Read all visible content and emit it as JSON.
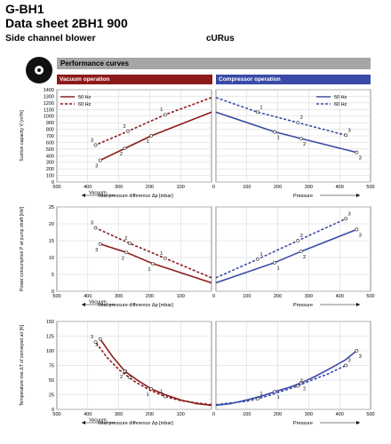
{
  "header": {
    "model": "G-BH1",
    "datasheet": "Data sheet 2BH1 900",
    "product": "Side channel blower",
    "cert_mark": "cURus"
  },
  "performance": {
    "title": "Performance curves",
    "vacuum_label": "Vacuum operation",
    "compressor_label": "Compressor operation"
  },
  "colors": {
    "vacuum": "#8c1a1a",
    "compressor": "#3a4aa6"
  },
  "chart_data": [
    {
      "type": "line",
      "panel": "suction-capacity",
      "ylabel": "Suction capacity V̇ [m³/h]",
      "xlabel": "Total pressure difference Δp [mbar]",
      "x_left_label": "Vacuum",
      "x_right_label": "Pressure",
      "ylim": [
        0,
        1400
      ],
      "yticks": [
        0,
        100,
        200,
        300,
        400,
        500,
        600,
        700,
        800,
        900,
        1000,
        1100,
        1200,
        1300,
        1400
      ],
      "xticks": [
        "500",
        "400",
        "300",
        "200",
        "100",
        "0",
        "100",
        "200",
        "300",
        "400",
        "500"
      ],
      "legend": [
        "50 Hz",
        "60 Hz"
      ],
      "series": [
        {
          "side": "vacuum",
          "name": "50 Hz",
          "style": "solid",
          "x": [
            0,
            195,
            280,
            360
          ],
          "y": [
            1060,
            700,
            510,
            330
          ],
          "markers": [
            {
              "x": 195,
              "y": 700,
              "label": "1"
            },
            {
              "x": 280,
              "y": 510,
              "label": "2"
            },
            {
              "x": 360,
              "y": 330,
              "label": "3"
            }
          ]
        },
        {
          "side": "vacuum",
          "name": "60 Hz",
          "style": "dashed",
          "x": [
            0,
            150,
            270,
            375
          ],
          "y": [
            1280,
            1020,
            770,
            560
          ],
          "markers": [
            {
              "x": 150,
              "y": 1020,
              "label": "1"
            },
            {
              "x": 270,
              "y": 770,
              "label": "2"
            },
            {
              "x": 375,
              "y": 560,
              "label": "3"
            }
          ]
        },
        {
          "side": "compressor",
          "name": "50 Hz",
          "style": "solid",
          "x": [
            0,
            190,
            275,
            455
          ],
          "y": [
            1060,
            760,
            660,
            450
          ],
          "markers": [
            {
              "x": 190,
              "y": 760,
              "label": "1"
            },
            {
              "x": 275,
              "y": 660,
              "label": "2"
            },
            {
              "x": 455,
              "y": 450,
              "label": "3"
            }
          ]
        },
        {
          "side": "compressor",
          "name": "60 Hz",
          "style": "dashed",
          "x": [
            0,
            135,
            265,
            420
          ],
          "y": [
            1280,
            1060,
            900,
            710
          ],
          "markers": [
            {
              "x": 135,
              "y": 1060,
              "label": "1"
            },
            {
              "x": 265,
              "y": 900,
              "label": "2"
            },
            {
              "x": 420,
              "y": 710,
              "label": "3"
            }
          ]
        }
      ]
    },
    {
      "type": "line",
      "panel": "power-consumption",
      "ylabel": "Power consumption P at pump shaft [kW]",
      "xlabel": "Total pressure difference Δp [mbar]",
      "x_left_label": "Vacuum",
      "x_right_label": "Pressure",
      "ylim": [
        0,
        25
      ],
      "yticks": [
        0,
        5,
        10,
        15,
        20,
        25
      ],
      "xticks": [
        "500",
        "400",
        "300",
        "200",
        "100",
        "0",
        "100",
        "200",
        "300",
        "400",
        "500"
      ],
      "series": [
        {
          "side": "vacuum",
          "name": "50 Hz",
          "style": "solid",
          "x": [
            0,
            190,
            275,
            360
          ],
          "y": [
            2.5,
            8.2,
            11.5,
            14.0
          ],
          "markers": [
            {
              "x": 190,
              "y": 8.2,
              "label": "1"
            },
            {
              "x": 275,
              "y": 11.5,
              "label": "2"
            },
            {
              "x": 360,
              "y": 14.0,
              "label": "3"
            }
          ]
        },
        {
          "side": "vacuum",
          "name": "60 Hz",
          "style": "dashed",
          "x": [
            0,
            150,
            265,
            375
          ],
          "y": [
            4.0,
            9.8,
            14.2,
            18.8
          ],
          "markers": [
            {
              "x": 150,
              "y": 9.8,
              "label": "1"
            },
            {
              "x": 265,
              "y": 14.2,
              "label": "2"
            },
            {
              "x": 375,
              "y": 18.8,
              "label": "3"
            }
          ]
        },
        {
          "side": "compressor",
          "name": "50 Hz",
          "style": "solid",
          "x": [
            0,
            190,
            275,
            455
          ],
          "y": [
            2.5,
            8.5,
            11.8,
            18.3
          ],
          "markers": [
            {
              "x": 190,
              "y": 8.5,
              "label": "1"
            },
            {
              "x": 275,
              "y": 11.8,
              "label": "2"
            },
            {
              "x": 455,
              "y": 18.3,
              "label": "3"
            }
          ]
        },
        {
          "side": "compressor",
          "name": "60 Hz",
          "style": "dashed",
          "x": [
            0,
            135,
            265,
            420
          ],
          "y": [
            4.0,
            9.5,
            15.0,
            21.5
          ],
          "markers": [
            {
              "x": 135,
              "y": 9.5,
              "label": "1"
            },
            {
              "x": 265,
              "y": 15.0,
              "label": "2"
            },
            {
              "x": 420,
              "y": 21.5,
              "label": "3"
            }
          ]
        }
      ]
    },
    {
      "type": "line",
      "panel": "temperature-rise",
      "ylabel": "Temperature rise ΔT of conveyed air [K]",
      "xlabel": "Total pressure difference Δp [mbar]",
      "x_left_label": "Vacuum",
      "x_right_label": "Pressure",
      "ylim": [
        0,
        150
      ],
      "yticks": [
        0,
        25,
        50,
        75,
        100,
        125,
        150
      ],
      "xticks": [
        "500",
        "400",
        "300",
        "200",
        "100",
        "0",
        "100",
        "200",
        "300",
        "400",
        "500"
      ],
      "series": [
        {
          "side": "vacuum",
          "name": "50 Hz",
          "style": "solid",
          "x": [
            0,
            50,
            100,
            150,
            195,
            240,
            280,
            320,
            360
          ],
          "y": [
            7,
            10,
            16,
            25,
            35,
            50,
            65,
            90,
            120
          ],
          "markers": [
            {
              "x": 195,
              "y": 35,
              "label": "1"
            },
            {
              "x": 280,
              "y": 65,
              "label": "2"
            },
            {
              "x": 360,
              "y": 120,
              "label": "3"
            }
          ]
        },
        {
          "side": "vacuum",
          "name": "60 Hz",
          "style": "dashed",
          "x": [
            0,
            50,
            100,
            150,
            200,
            250,
            300,
            340,
            375
          ],
          "y": [
            8,
            11,
            15,
            22,
            33,
            48,
            68,
            90,
            115
          ],
          "markers": [
            {
              "x": 150,
              "y": 22,
              "label": "1"
            },
            {
              "x": 265,
              "y": 55,
              "label": "2"
            },
            {
              "x": 375,
              "y": 115,
              "label": "3"
            }
          ]
        },
        {
          "side": "compressor",
          "name": "50 Hz",
          "style": "solid",
          "x": [
            0,
            50,
            100,
            150,
            190,
            240,
            275,
            320,
            370,
            420,
            455
          ],
          "y": [
            7,
            10,
            16,
            23,
            30,
            38,
            45,
            56,
            70,
            85,
            100
          ],
          "markers": [
            {
              "x": 190,
              "y": 30,
              "label": "1"
            },
            {
              "x": 275,
              "y": 45,
              "label": "2"
            },
            {
              "x": 455,
              "y": 100,
              "label": "3"
            }
          ]
        },
        {
          "side": "compressor",
          "name": "60 Hz",
          "style": "dashed",
          "x": [
            0,
            50,
            100,
            135,
            180,
            225,
            265,
            310,
            360,
            420
          ],
          "y": [
            8,
            11,
            14,
            18,
            25,
            33,
            40,
            50,
            60,
            75
          ],
          "markers": [
            {
              "x": 135,
              "y": 18,
              "label": "1"
            },
            {
              "x": 265,
              "y": 40,
              "label": "2"
            },
            {
              "x": 420,
              "y": 75,
              "label": "3"
            }
          ]
        }
      ]
    }
  ]
}
